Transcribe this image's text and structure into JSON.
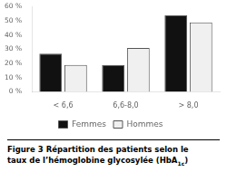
{
  "chart_data": {
    "type": "bar",
    "categories": [
      "< 6,6",
      "6,6-8,0",
      "> 8,0"
    ],
    "series": [
      {
        "name": "Femmes",
        "color": "#111111",
        "values": [
          27,
          19,
          54
        ]
      },
      {
        "name": "Hommes",
        "color": "#f0f0f0",
        "values": [
          19,
          31,
          49
        ]
      }
    ],
    "ylim": [
      0,
      60
    ],
    "yticks": [
      {
        "value": 0,
        "label": "0 %"
      },
      {
        "value": 10,
        "label": "10 %"
      },
      {
        "value": 20,
        "label": "20 %"
      },
      {
        "value": 30,
        "label": "30 %"
      },
      {
        "value": 40,
        "label": "40 %"
      },
      {
        "value": 50,
        "label": "50 %"
      },
      {
        "value": 60,
        "label": "60 %"
      }
    ],
    "grid": false,
    "legend": "bottom",
    "annotations": [
      "Figure 3 Répartition des patients selon le",
      "taux de l’hémoglobine glycosylée (HbA",
      "1c",
      ")"
    ]
  }
}
